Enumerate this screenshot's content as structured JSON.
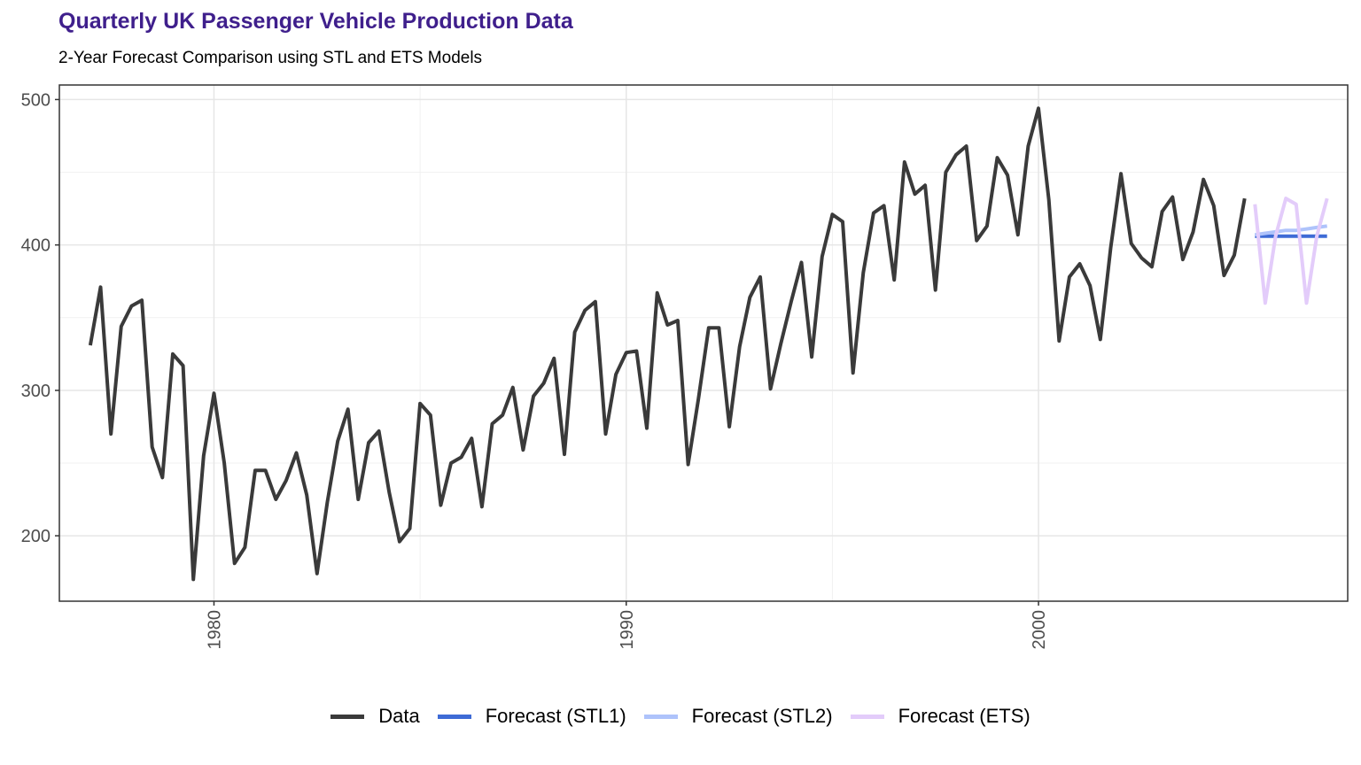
{
  "chart_data": {
    "type": "line",
    "title": "Quarterly UK Passenger Vehicle Production Data",
    "subtitle": "2-Year Forecast Comparison using STL and ETS Models",
    "xlabel": "",
    "ylabel": "",
    "xlim": [
      1976.25,
      2007.5
    ],
    "ylim": [
      155,
      510
    ],
    "x_ticks": [
      1980,
      1990,
      2000
    ],
    "y_ticks": [
      200,
      300,
      400,
      500
    ],
    "grid": true,
    "legend_position": "bottom",
    "series": [
      {
        "name": "Data",
        "color": "#3a3a3a",
        "start": 1977.0,
        "step": 0.25,
        "values": [
          331,
          371,
          270,
          344,
          358,
          362,
          261,
          240,
          325,
          317,
          170,
          255,
          298,
          250,
          181,
          192,
          245,
          245,
          225,
          238,
          257,
          228,
          174,
          223,
          265,
          287,
          225,
          264,
          272,
          230,
          196,
          205,
          291,
          283,
          221,
          250,
          254,
          267,
          220,
          277,
          283,
          302,
          259,
          296,
          305,
          322,
          256,
          340,
          355,
          361,
          270,
          311,
          326,
          327,
          274,
          367,
          345,
          348,
          249,
          294,
          343,
          343,
          275,
          330,
          364,
          378,
          301,
          332,
          361,
          388,
          323,
          392,
          421,
          416,
          312,
          381,
          422,
          427,
          376,
          457,
          435,
          441,
          369,
          450,
          462,
          468,
          403,
          413,
          460,
          448,
          407,
          468,
          494,
          431,
          334,
          378,
          387,
          372,
          335,
          398,
          449,
          401,
          391,
          385,
          423,
          433,
          390,
          409,
          445,
          427,
          379,
          393,
          432
        ]
      },
      {
        "name": "Forecast (STL1)",
        "color": "#3e6bd6",
        "start": 2005.25,
        "step": 0.25,
        "values": [
          406,
          406,
          406,
          406,
          406,
          406,
          406,
          406
        ]
      },
      {
        "name": "Forecast (STL2)",
        "color": "#aec3fb",
        "start": 2005.25,
        "step": 0.25,
        "values": [
          407,
          408,
          409,
          410,
          410,
          411,
          412,
          413
        ]
      },
      {
        "name": "Forecast (ETS)",
        "color": "#e3ccfa",
        "start": 2005.25,
        "step": 0.25,
        "values": [
          428,
          360,
          406,
          432,
          428,
          360,
          406,
          432
        ]
      }
    ]
  }
}
